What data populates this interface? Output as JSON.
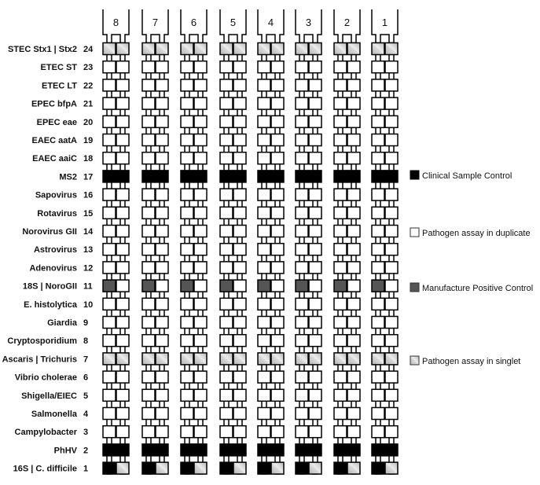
{
  "columns": [
    "8",
    "7",
    "6",
    "5",
    "4",
    "3",
    "2",
    "1"
  ],
  "rows": [
    {
      "number": "24",
      "label": "STEC Stx1  | Stx2",
      "left": "singlet",
      "right": "singlet"
    },
    {
      "number": "23",
      "label": "ETEC ST",
      "left": "duplicate",
      "right": "duplicate"
    },
    {
      "number": "22",
      "label": "ETEC LT",
      "left": "duplicate",
      "right": "duplicate"
    },
    {
      "number": "21",
      "label": "EPEC bfpA",
      "left": "duplicate",
      "right": "duplicate"
    },
    {
      "number": "20",
      "label": "EPEC eae",
      "left": "duplicate",
      "right": "duplicate"
    },
    {
      "number": "19",
      "label": "EAEC aatA",
      "left": "duplicate",
      "right": "duplicate"
    },
    {
      "number": "18",
      "label": "EAEC aaiC",
      "left": "duplicate",
      "right": "duplicate"
    },
    {
      "number": "17",
      "label": "MS2",
      "left": "control",
      "right": "control"
    },
    {
      "number": "16",
      "label": "Sapovirus",
      "left": "duplicate",
      "right": "duplicate"
    },
    {
      "number": "15",
      "label": "Rotavirus",
      "left": "duplicate",
      "right": "duplicate"
    },
    {
      "number": "14",
      "label": "Norovirus GII",
      "left": "duplicate",
      "right": "duplicate"
    },
    {
      "number": "13",
      "label": "Astrovirus",
      "left": "duplicate",
      "right": "duplicate"
    },
    {
      "number": "12",
      "label": "Adenovirus",
      "left": "duplicate",
      "right": "duplicate"
    },
    {
      "number": "11",
      "label": "18S    |    NoroGII",
      "left": "positive",
      "right": "duplicate"
    },
    {
      "number": "10",
      "label": "E. histolytica",
      "left": "duplicate",
      "right": "duplicate"
    },
    {
      "number": "9",
      "label": "Giardia",
      "left": "duplicate",
      "right": "duplicate"
    },
    {
      "number": "8",
      "label": "Cryptosporidium",
      "left": "duplicate",
      "right": "duplicate"
    },
    {
      "number": "7",
      "label": "Ascaris  | Trichuris",
      "left": "singlet",
      "right": "singlet"
    },
    {
      "number": "6",
      "label": "Vibrio cholerae",
      "left": "duplicate",
      "right": "duplicate"
    },
    {
      "number": "5",
      "label": "Shigella/EIEC",
      "left": "duplicate",
      "right": "duplicate"
    },
    {
      "number": "4",
      "label": "Salmonella",
      "left": "duplicate",
      "right": "duplicate"
    },
    {
      "number": "3",
      "label": "Campylobacter",
      "left": "duplicate",
      "right": "duplicate"
    },
    {
      "number": "2",
      "label": "PhHV",
      "left": "control",
      "right": "control"
    },
    {
      "number": "1",
      "label": "16S   | C. difficile",
      "left": "control",
      "right": "singlet"
    }
  ],
  "legend": [
    {
      "key": "control",
      "label": "Clinical Sample Control",
      "color": "#000000"
    },
    {
      "key": "duplicate",
      "label": "Pathogen assay in duplicate",
      "color": "#ffffff"
    },
    {
      "key": "positive",
      "label": "Manufacture Positive Control",
      "color": "#555555"
    },
    {
      "key": "singlet",
      "label": "Pathogen assay in singlet",
      "color": "#c8c8c8"
    }
  ]
}
